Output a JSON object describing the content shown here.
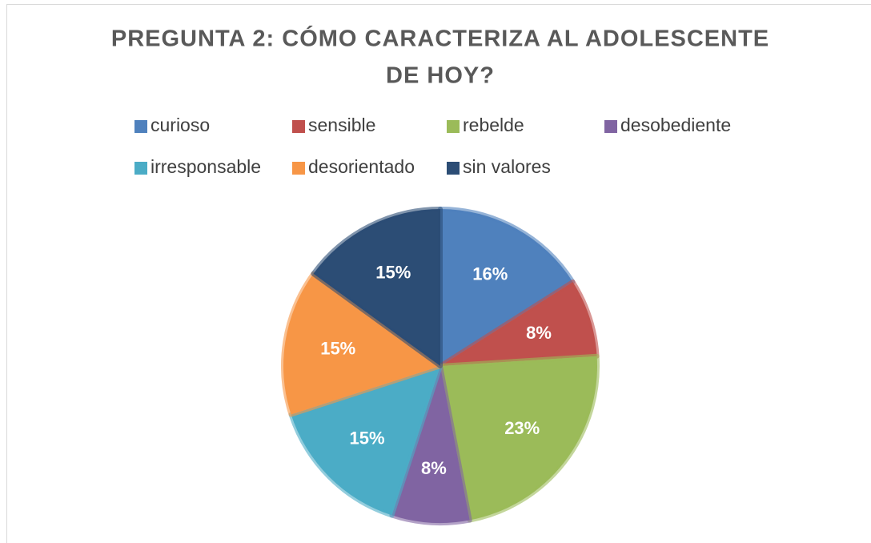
{
  "chart_data": {
    "type": "pie",
    "title": [
      "PREGUNTA 2: CÓMO CARACTERIZA AL ADOLESCENTE",
      "DE HOY?"
    ],
    "categories": [
      "curioso",
      "sensible",
      "rebelde",
      "desobediente",
      "irresponsable",
      "desorientado",
      "sin valores"
    ],
    "values": [
      16,
      8,
      23,
      8,
      15,
      15,
      15
    ],
    "value_labels": [
      "16%",
      "8%",
      "23%",
      "8%",
      "15%",
      "15%",
      "15%"
    ],
    "colors": [
      "#4f81bd",
      "#c0504d",
      "#9bbb59",
      "#8064a2",
      "#4bacc6",
      "#f79646",
      "#2c4d75"
    ],
    "legend": "top"
  }
}
